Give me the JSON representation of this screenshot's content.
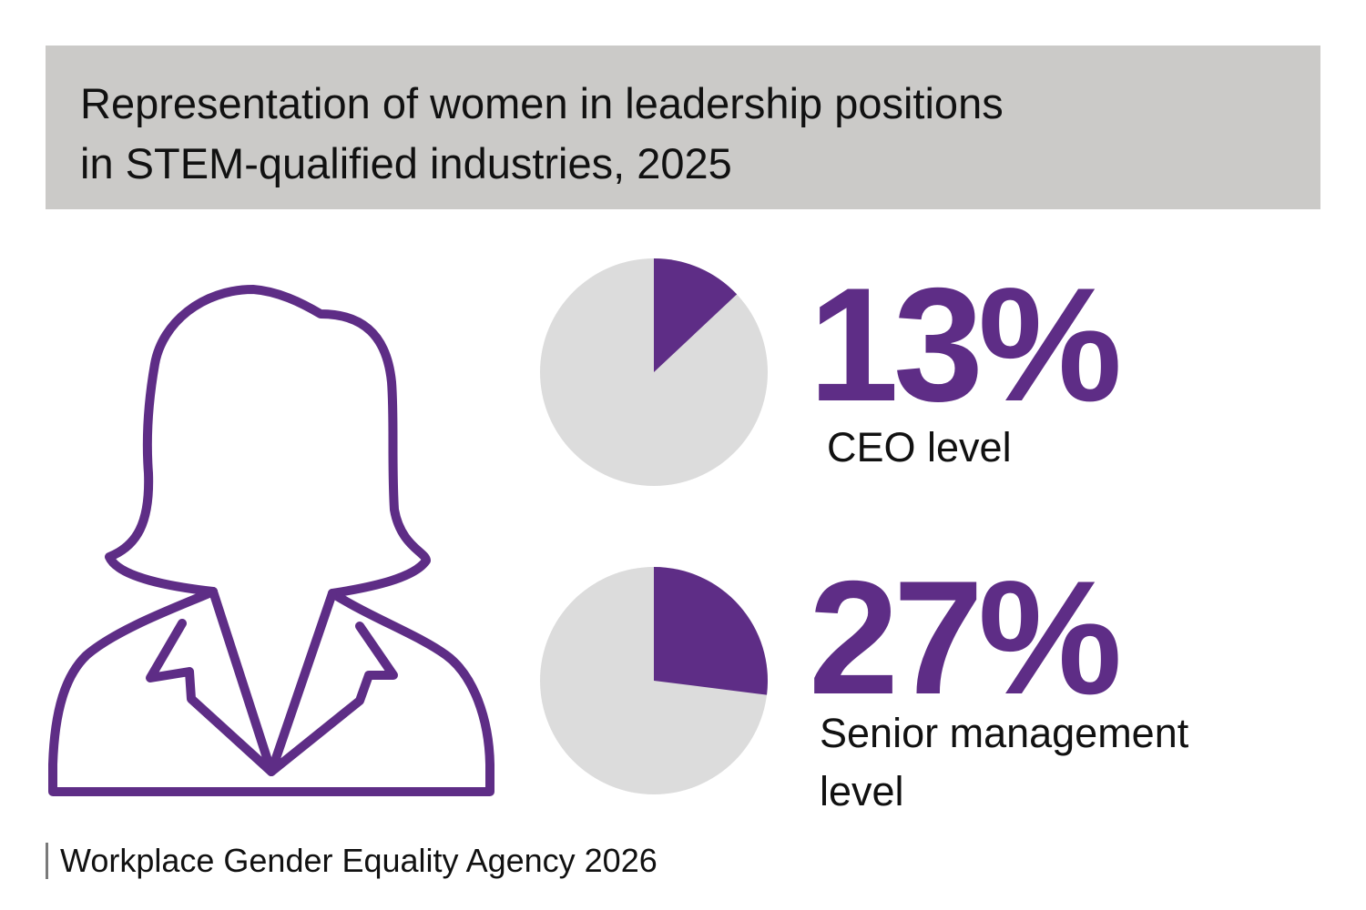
{
  "title": {
    "line1": "Representation of women in leadership positions",
    "line2": "in STEM-qualified industries, 2025"
  },
  "colors": {
    "accent": "#5e2d86",
    "pie_background": "#dcdcdc",
    "title_background": "#cbcac8",
    "text": "#111111"
  },
  "icons": {
    "figure": "woman-silhouette-icon"
  },
  "chart_data": {
    "type": "pie",
    "title": "Representation of women in leadership positions in STEM-qualified industries, 2025",
    "series": [
      {
        "name": "CEO level",
        "value_label": "13%",
        "label_lines": [
          "CEO level"
        ],
        "percent": 13
      },
      {
        "name": "Senior management level",
        "value_label": "27%",
        "label_lines": [
          "Senior management",
          "level"
        ],
        "percent": 27
      }
    ]
  },
  "source": "Workplace Gender Equality Agency 2026"
}
